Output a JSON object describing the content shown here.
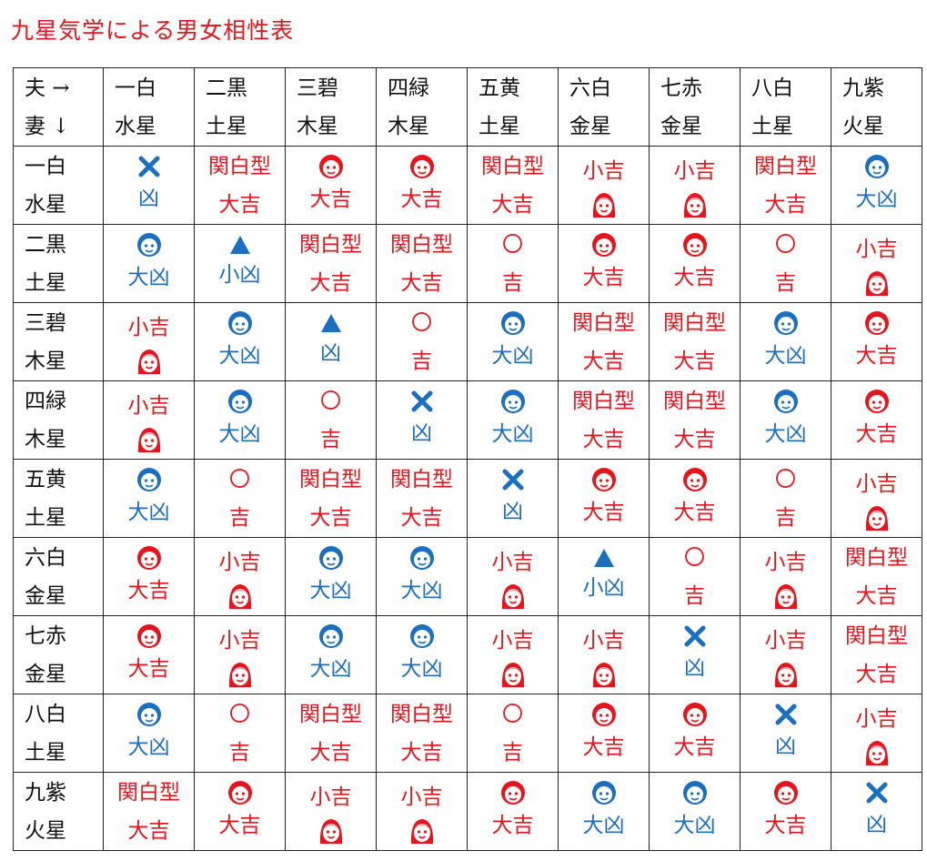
{
  "title": "九星気学による男女相性表",
  "corner": {
    "line1": "夫 →",
    "line2": "妻 ↓"
  },
  "columns": [
    {
      "l1": "一白",
      "l2": "水星"
    },
    {
      "l1": "二黒",
      "l2": "土星"
    },
    {
      "l1": "三碧",
      "l2": "木星"
    },
    {
      "l1": "四緑",
      "l2": "木星"
    },
    {
      "l1": "五黄",
      "l2": "土星"
    },
    {
      "l1": "六白",
      "l2": "金星"
    },
    {
      "l1": "七赤",
      "l2": "金星"
    },
    {
      "l1": "八白",
      "l2": "土星"
    },
    {
      "l1": "九紫",
      "l2": "火星"
    }
  ],
  "rows": [
    {
      "l1": "一白",
      "l2": "水星",
      "cells": [
        {
          "top": {
            "icon": "cross-icon",
            "color": "blue"
          },
          "bottom": {
            "text": "凶",
            "color": "blue"
          }
        },
        {
          "top": {
            "text": "関白型",
            "color": "red"
          },
          "bottom": {
            "text": "大吉",
            "color": "red"
          }
        },
        {
          "top": {
            "icon": "man-face-icon",
            "color": "red"
          },
          "bottom": {
            "text": "大吉",
            "color": "red"
          }
        },
        {
          "top": {
            "icon": "man-face-icon",
            "color": "red"
          },
          "bottom": {
            "text": "大吉",
            "color": "red"
          }
        },
        {
          "top": {
            "text": "関白型",
            "color": "red"
          },
          "bottom": {
            "text": "大吉",
            "color": "red"
          }
        },
        {
          "top": {
            "text": "小吉",
            "color": "red"
          },
          "bottom": {
            "icon": "woman-face-icon",
            "color": "red"
          }
        },
        {
          "top": {
            "text": "小吉",
            "color": "red"
          },
          "bottom": {
            "icon": "woman-face-icon",
            "color": "red"
          }
        },
        {
          "top": {
            "text": "関白型",
            "color": "red"
          },
          "bottom": {
            "text": "大吉",
            "color": "red"
          }
        },
        {
          "top": {
            "icon": "man-face-icon",
            "color": "blue"
          },
          "bottom": {
            "text": "大凶",
            "color": "blue"
          }
        }
      ]
    },
    {
      "l1": "二黒",
      "l2": "土星",
      "cells": [
        {
          "top": {
            "icon": "man-face-icon",
            "color": "blue"
          },
          "bottom": {
            "text": "大凶",
            "color": "blue"
          }
        },
        {
          "top": {
            "icon": "triangle-icon",
            "color": "blue"
          },
          "bottom": {
            "text": "小凶",
            "color": "blue"
          }
        },
        {
          "top": {
            "text": "関白型",
            "color": "red"
          },
          "bottom": {
            "text": "大吉",
            "color": "red"
          }
        },
        {
          "top": {
            "text": "関白型",
            "color": "red"
          },
          "bottom": {
            "text": "大吉",
            "color": "red"
          }
        },
        {
          "top": {
            "text": "〇",
            "color": "red"
          },
          "bottom": {
            "text": "吉",
            "color": "red"
          }
        },
        {
          "top": {
            "icon": "man-face-icon",
            "color": "red"
          },
          "bottom": {
            "text": "大吉",
            "color": "red"
          }
        },
        {
          "top": {
            "icon": "man-face-icon",
            "color": "red"
          },
          "bottom": {
            "text": "大吉",
            "color": "red"
          }
        },
        {
          "top": {
            "text": "〇",
            "color": "red"
          },
          "bottom": {
            "text": "吉",
            "color": "red"
          }
        },
        {
          "top": {
            "text": "小吉",
            "color": "red"
          },
          "bottom": {
            "icon": "woman-face-icon",
            "color": "red"
          }
        }
      ]
    },
    {
      "l1": "三碧",
      "l2": "木星",
      "cells": [
        {
          "top": {
            "text": "小吉",
            "color": "red"
          },
          "bottom": {
            "icon": "woman-face-icon",
            "color": "red"
          }
        },
        {
          "top": {
            "icon": "man-face-icon",
            "color": "blue"
          },
          "bottom": {
            "text": "大凶",
            "color": "blue"
          }
        },
        {
          "top": {
            "icon": "triangle-icon",
            "color": "blue"
          },
          "bottom": {
            "text": "凶",
            "color": "blue"
          }
        },
        {
          "top": {
            "text": "〇",
            "color": "red"
          },
          "bottom": {
            "text": "吉",
            "color": "red"
          }
        },
        {
          "top": {
            "icon": "man-face-icon",
            "color": "blue"
          },
          "bottom": {
            "text": "大凶",
            "color": "blue"
          }
        },
        {
          "top": {
            "text": "関白型",
            "color": "red"
          },
          "bottom": {
            "text": "大吉",
            "color": "red"
          }
        },
        {
          "top": {
            "text": "関白型",
            "color": "red"
          },
          "bottom": {
            "text": "大吉",
            "color": "red"
          }
        },
        {
          "top": {
            "icon": "man-face-icon",
            "color": "blue"
          },
          "bottom": {
            "text": "大凶",
            "color": "blue"
          }
        },
        {
          "top": {
            "icon": "man-face-icon",
            "color": "red"
          },
          "bottom": {
            "text": "大吉",
            "color": "red"
          }
        }
      ]
    },
    {
      "l1": "四緑",
      "l2": "木星",
      "cells": [
        {
          "top": {
            "text": "小吉",
            "color": "red"
          },
          "bottom": {
            "icon": "woman-face-icon",
            "color": "red"
          }
        },
        {
          "top": {
            "icon": "man-face-icon",
            "color": "blue"
          },
          "bottom": {
            "text": "大凶",
            "color": "blue"
          }
        },
        {
          "top": {
            "text": "〇",
            "color": "red"
          },
          "bottom": {
            "text": "吉",
            "color": "red"
          }
        },
        {
          "top": {
            "icon": "cross-icon",
            "color": "blue"
          },
          "bottom": {
            "text": "凶",
            "color": "blue"
          }
        },
        {
          "top": {
            "icon": "man-face-icon",
            "color": "blue"
          },
          "bottom": {
            "text": "大凶",
            "color": "blue"
          }
        },
        {
          "top": {
            "text": "関白型",
            "color": "red"
          },
          "bottom": {
            "text": "大吉",
            "color": "red"
          }
        },
        {
          "top": {
            "text": "関白型",
            "color": "red"
          },
          "bottom": {
            "text": "大吉",
            "color": "red"
          }
        },
        {
          "top": {
            "icon": "man-face-icon",
            "color": "blue"
          },
          "bottom": {
            "text": "大凶",
            "color": "blue"
          }
        },
        {
          "top": {
            "icon": "man-face-icon",
            "color": "red"
          },
          "bottom": {
            "text": "大吉",
            "color": "red"
          }
        }
      ]
    },
    {
      "l1": "五黄",
      "l2": "土星",
      "cells": [
        {
          "top": {
            "icon": "man-face-icon",
            "color": "blue"
          },
          "bottom": {
            "text": "大凶",
            "color": "blue"
          }
        },
        {
          "top": {
            "text": "〇",
            "color": "red"
          },
          "bottom": {
            "text": "吉",
            "color": "red"
          }
        },
        {
          "top": {
            "text": "関白型",
            "color": "red"
          },
          "bottom": {
            "text": "大吉",
            "color": "red"
          }
        },
        {
          "top": {
            "text": "関白型",
            "color": "red"
          },
          "bottom": {
            "text": "大吉",
            "color": "red"
          }
        },
        {
          "top": {
            "icon": "cross-icon",
            "color": "blue"
          },
          "bottom": {
            "text": "凶",
            "color": "blue"
          }
        },
        {
          "top": {
            "icon": "man-face-icon",
            "color": "red"
          },
          "bottom": {
            "text": "大吉",
            "color": "red"
          }
        },
        {
          "top": {
            "icon": "man-face-icon",
            "color": "red"
          },
          "bottom": {
            "text": "大吉",
            "color": "red"
          }
        },
        {
          "top": {
            "text": "〇",
            "color": "red"
          },
          "bottom": {
            "text": "吉",
            "color": "red"
          }
        },
        {
          "top": {
            "text": "小吉",
            "color": "red"
          },
          "bottom": {
            "icon": "woman-face-icon",
            "color": "red"
          }
        }
      ]
    },
    {
      "l1": "六白",
      "l2": "金星",
      "cells": [
        {
          "top": {
            "icon": "man-face-icon",
            "color": "red"
          },
          "bottom": {
            "text": "大吉",
            "color": "red"
          }
        },
        {
          "top": {
            "text": "小吉",
            "color": "red"
          },
          "bottom": {
            "icon": "woman-face-icon",
            "color": "red"
          }
        },
        {
          "top": {
            "icon": "man-face-icon",
            "color": "blue"
          },
          "bottom": {
            "text": "大凶",
            "color": "blue"
          }
        },
        {
          "top": {
            "icon": "man-face-icon",
            "color": "blue"
          },
          "bottom": {
            "text": "大凶",
            "color": "blue"
          }
        },
        {
          "top": {
            "text": "小吉",
            "color": "red"
          },
          "bottom": {
            "icon": "woman-face-icon",
            "color": "red"
          }
        },
        {
          "top": {
            "icon": "triangle-icon",
            "color": "blue"
          },
          "bottom": {
            "text": "小凶",
            "color": "blue"
          }
        },
        {
          "top": {
            "text": "〇",
            "color": "red"
          },
          "bottom": {
            "text": "吉",
            "color": "red"
          }
        },
        {
          "top": {
            "text": "小吉",
            "color": "red"
          },
          "bottom": {
            "icon": "woman-face-icon",
            "color": "red"
          }
        },
        {
          "top": {
            "text": "関白型",
            "color": "red"
          },
          "bottom": {
            "text": "大吉",
            "color": "red"
          }
        }
      ]
    },
    {
      "l1": "七赤",
      "l2": "金星",
      "cells": [
        {
          "top": {
            "icon": "man-face-icon",
            "color": "red"
          },
          "bottom": {
            "text": "大吉",
            "color": "red"
          }
        },
        {
          "top": {
            "text": "小吉",
            "color": "red"
          },
          "bottom": {
            "icon": "woman-face-icon",
            "color": "red"
          }
        },
        {
          "top": {
            "icon": "man-face-icon",
            "color": "blue"
          },
          "bottom": {
            "text": "大凶",
            "color": "blue"
          }
        },
        {
          "top": {
            "icon": "man-face-icon",
            "color": "blue"
          },
          "bottom": {
            "text": "大凶",
            "color": "blue"
          }
        },
        {
          "top": {
            "text": "小吉",
            "color": "red"
          },
          "bottom": {
            "icon": "woman-face-icon",
            "color": "red"
          }
        },
        {
          "top": {
            "text": "小吉",
            "color": "red"
          },
          "bottom": {
            "icon": "woman-face-icon",
            "color": "red"
          }
        },
        {
          "top": {
            "icon": "cross-icon",
            "color": "blue"
          },
          "bottom": {
            "text": "凶",
            "color": "blue"
          }
        },
        {
          "top": {
            "text": "小吉",
            "color": "red"
          },
          "bottom": {
            "icon": "woman-face-icon",
            "color": "red"
          }
        },
        {
          "top": {
            "text": "関白型",
            "color": "red"
          },
          "bottom": {
            "text": "大吉",
            "color": "red"
          }
        }
      ]
    },
    {
      "l1": "八白",
      "l2": "土星",
      "cells": [
        {
          "top": {
            "icon": "man-face-icon",
            "color": "blue"
          },
          "bottom": {
            "text": "大凶",
            "color": "blue"
          }
        },
        {
          "top": {
            "text": "〇",
            "color": "red"
          },
          "bottom": {
            "text": "吉",
            "color": "red"
          }
        },
        {
          "top": {
            "text": "関白型",
            "color": "red"
          },
          "bottom": {
            "text": "大吉",
            "color": "red"
          }
        },
        {
          "top": {
            "text": "関白型",
            "color": "red"
          },
          "bottom": {
            "text": "大吉",
            "color": "red"
          }
        },
        {
          "top": {
            "text": "〇",
            "color": "red"
          },
          "bottom": {
            "text": "吉",
            "color": "red"
          }
        },
        {
          "top": {
            "icon": "man-face-icon",
            "color": "red"
          },
          "bottom": {
            "text": "大吉",
            "color": "red"
          }
        },
        {
          "top": {
            "icon": "man-face-icon",
            "color": "red"
          },
          "bottom": {
            "text": "大吉",
            "color": "red"
          }
        },
        {
          "top": {
            "icon": "cross-icon",
            "color": "blue"
          },
          "bottom": {
            "text": "凶",
            "color": "blue"
          }
        },
        {
          "top": {
            "text": "小吉",
            "color": "red"
          },
          "bottom": {
            "icon": "woman-face-icon",
            "color": "red"
          }
        }
      ]
    },
    {
      "l1": "九紫",
      "l2": "火星",
      "cells": [
        {
          "top": {
            "text": "関白型",
            "color": "red"
          },
          "bottom": {
            "text": "大吉",
            "color": "red"
          }
        },
        {
          "top": {
            "icon": "man-face-icon",
            "color": "red"
          },
          "bottom": {
            "text": "大吉",
            "color": "red"
          }
        },
        {
          "top": {
            "text": "小吉",
            "color": "red"
          },
          "bottom": {
            "icon": "woman-face-icon",
            "color": "red"
          }
        },
        {
          "top": {
            "text": "小吉",
            "color": "red"
          },
          "bottom": {
            "icon": "woman-face-icon",
            "color": "red"
          }
        },
        {
          "top": {
            "icon": "man-face-icon",
            "color": "red"
          },
          "bottom": {
            "text": "大吉",
            "color": "red"
          }
        },
        {
          "top": {
            "icon": "man-face-icon",
            "color": "blue"
          },
          "bottom": {
            "text": "大凶",
            "color": "blue"
          }
        },
        {
          "top": {
            "icon": "man-face-icon",
            "color": "blue"
          },
          "bottom": {
            "text": "大凶",
            "color": "blue"
          }
        },
        {
          "top": {
            "icon": "man-face-icon",
            "color": "red"
          },
          "bottom": {
            "text": "大吉",
            "color": "red"
          }
        },
        {
          "top": {
            "icon": "cross-icon",
            "color": "blue"
          },
          "bottom": {
            "text": "凶",
            "color": "blue"
          }
        }
      ]
    }
  ],
  "colors": {
    "red": "#e8141c",
    "blue": "#1b6fc0",
    "text": "#111111",
    "border": "#222222"
  }
}
